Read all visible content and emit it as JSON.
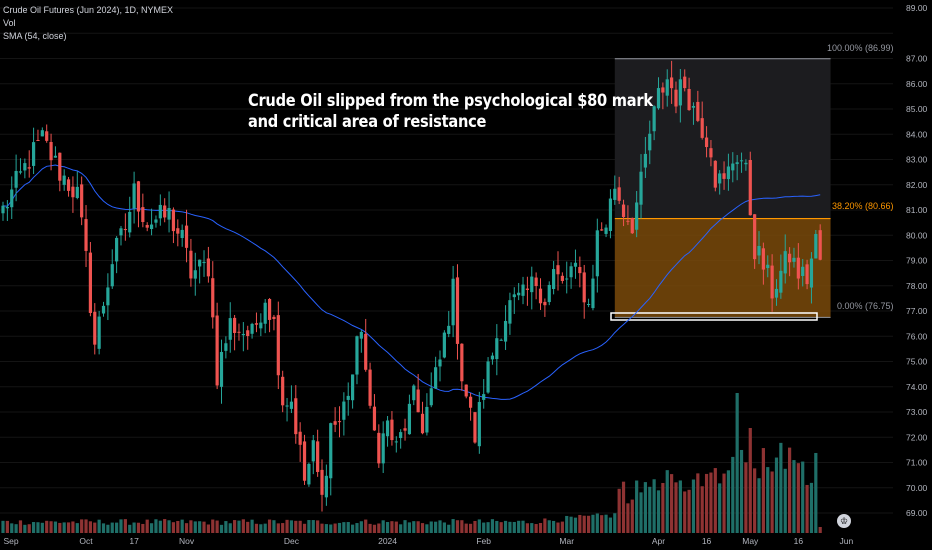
{
  "legend": {
    "symbol": "Crude Oil Futures (Jun 2024), 1D, NYMEX",
    "vol": "Vol",
    "sma": "SMA (54, close)"
  },
  "annotation": {
    "line1": "Crude Oil slipped from the psychological $80 mark",
    "line2": "and critical area of resistance"
  },
  "fib_labels": {
    "top": "100.00% (86.99)",
    "mid": "38.20% (80.66)",
    "bottom": "0.00% (76.75)"
  },
  "logo_glyph": "♔",
  "colors": {
    "background": "#000000",
    "up": "#26a69a",
    "down": "#ef5350",
    "sma": "#2962ff",
    "fib_mid": "#ff9800",
    "fib_zone": "#7a4a0b",
    "axis_text": "#b2b5be"
  },
  "chart_data": {
    "type": "candlestick",
    "title": "Crude Oil Futures (Jun 2024), 1D, NYMEX",
    "y_axis": {
      "side": "right",
      "ylim": [
        68.5,
        89.2
      ],
      "ticks": [
        "89.00",
        "88.00",
        "87.00",
        "86.00",
        "85.00",
        "84.00",
        "83.00",
        "82.00",
        "81.00",
        "80.00",
        "79.00",
        "78.00",
        "77.00",
        "76.00",
        "75.00",
        "74.00",
        "73.00",
        "72.00",
        "71.00",
        "70.00",
        "69.00"
      ]
    },
    "x_axis": {
      "labels": [
        "Sep",
        "Oct",
        "17",
        "Nov",
        "Dec",
        "2024",
        "Feb",
        "Mar",
        "Apr",
        "16",
        "May",
        "16",
        "Jun"
      ],
      "label_bars": [
        0,
        19,
        30,
        42,
        66,
        88,
        110,
        129,
        150,
        161,
        171,
        182,
        193
      ]
    },
    "bar_count": 188,
    "anchors": [
      [
        0,
        81.0
      ],
      [
        6,
        83.0
      ],
      [
        9,
        83.8
      ],
      [
        13,
        82.5
      ],
      [
        17,
        81.6
      ],
      [
        19,
        79.0
      ],
      [
        21,
        75.7
      ],
      [
        25,
        79.0
      ],
      [
        28,
        80.3
      ],
      [
        30,
        81.7
      ],
      [
        33,
        80.5
      ],
      [
        38,
        80.8
      ],
      [
        41,
        79.8
      ],
      [
        43,
        78.5
      ],
      [
        47,
        78.8
      ],
      [
        49,
        74.5
      ],
      [
        52,
        76.5
      ],
      [
        57,
        76.0
      ],
      [
        60,
        77.6
      ],
      [
        62,
        76.5
      ],
      [
        64,
        73.5
      ],
      [
        66,
        73.5
      ],
      [
        69,
        70.3
      ],
      [
        71,
        71.5
      ],
      [
        73,
        69.5
      ],
      [
        75,
        72.5
      ],
      [
        77,
        72.6
      ],
      [
        80,
        74.5
      ],
      [
        82,
        76.5
      ],
      [
        84,
        72.8
      ],
      [
        86,
        71.5
      ],
      [
        88,
        72.5
      ],
      [
        90,
        71.5
      ],
      [
        92,
        72.5
      ],
      [
        94,
        73.5
      ],
      [
        96,
        72.5
      ],
      [
        100,
        75.0
      ],
      [
        103,
        77.8
      ],
      [
        105,
        74.5
      ],
      [
        108,
        72.0
      ],
      [
        110,
        74.0
      ],
      [
        113,
        76.0
      ],
      [
        116,
        77.2
      ],
      [
        119,
        77.5
      ],
      [
        122,
        78.2
      ],
      [
        124,
        77.5
      ],
      [
        126,
        78.5
      ],
      [
        128,
        78.0
      ],
      [
        130,
        78.6
      ],
      [
        132,
        78.3
      ],
      [
        134,
        77.2
      ],
      [
        136,
        80.0
      ],
      [
        138,
        80.5
      ],
      [
        140,
        82.0
      ],
      [
        142,
        81.0
      ],
      [
        144,
        80.5
      ],
      [
        146,
        82.0
      ],
      [
        148,
        84.0
      ],
      [
        150,
        85.5
      ],
      [
        152,
        86.2
      ],
      [
        154,
        85.5
      ],
      [
        156,
        86.0
      ],
      [
        158,
        85.0
      ],
      [
        160,
        84.3
      ],
      [
        162,
        83.5
      ],
      [
        163,
        82.3
      ],
      [
        165,
        82.0
      ],
      [
        166,
        82.5
      ],
      [
        167,
        83.0
      ],
      [
        168,
        83.2
      ],
      [
        169,
        83.0
      ],
      [
        170,
        82.4
      ],
      [
        171,
        81.0
      ],
      [
        172,
        79.5
      ],
      [
        174,
        78.8
      ],
      [
        176,
        77.8
      ],
      [
        178,
        78.5
      ],
      [
        180,
        79.2
      ],
      [
        182,
        78.5
      ],
      [
        184,
        78.3
      ],
      [
        186,
        79.8
      ],
      [
        187,
        79.0
      ]
    ],
    "fib": {
      "high": 86.99,
      "mid": 80.66,
      "low": 76.75,
      "start_bar": 140,
      "end_bar": 188
    },
    "sma": {
      "name": "SMA (54, close)",
      "length": 54
    }
  }
}
